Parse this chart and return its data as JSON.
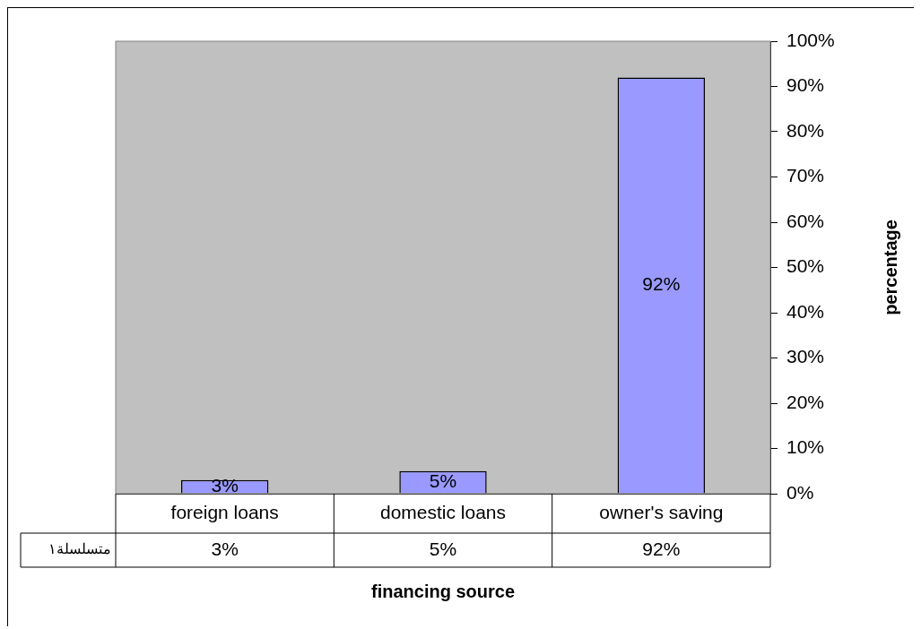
{
  "chart_data": {
    "type": "bar",
    "categories": [
      "foreign loans",
      "domestic loans",
      "owner's saving"
    ],
    "series": [
      {
        "name": "متسلسلة١",
        "color": "#9999ff",
        "values": [
          3,
          5,
          92
        ],
        "value_labels": [
          "3%",
          "5%",
          "92%"
        ]
      }
    ],
    "xlabel": "financing source",
    "ylabel": "percentage",
    "ylim": [
      0,
      100
    ],
    "yticks": [
      {
        "value": 0,
        "label": "0%"
      },
      {
        "value": 10,
        "label": "10%"
      },
      {
        "value": 20,
        "label": "20%"
      },
      {
        "value": 30,
        "label": "30%"
      },
      {
        "value": 40,
        "label": "40%"
      },
      {
        "value": 50,
        "label": "50%"
      },
      {
        "value": 60,
        "label": "60%"
      },
      {
        "value": 70,
        "label": "70%"
      },
      {
        "value": 80,
        "label": "80%"
      },
      {
        "value": 90,
        "label": "90%"
      },
      {
        "value": 100,
        "label": "100%"
      }
    ],
    "grid": false,
    "legend": false
  }
}
